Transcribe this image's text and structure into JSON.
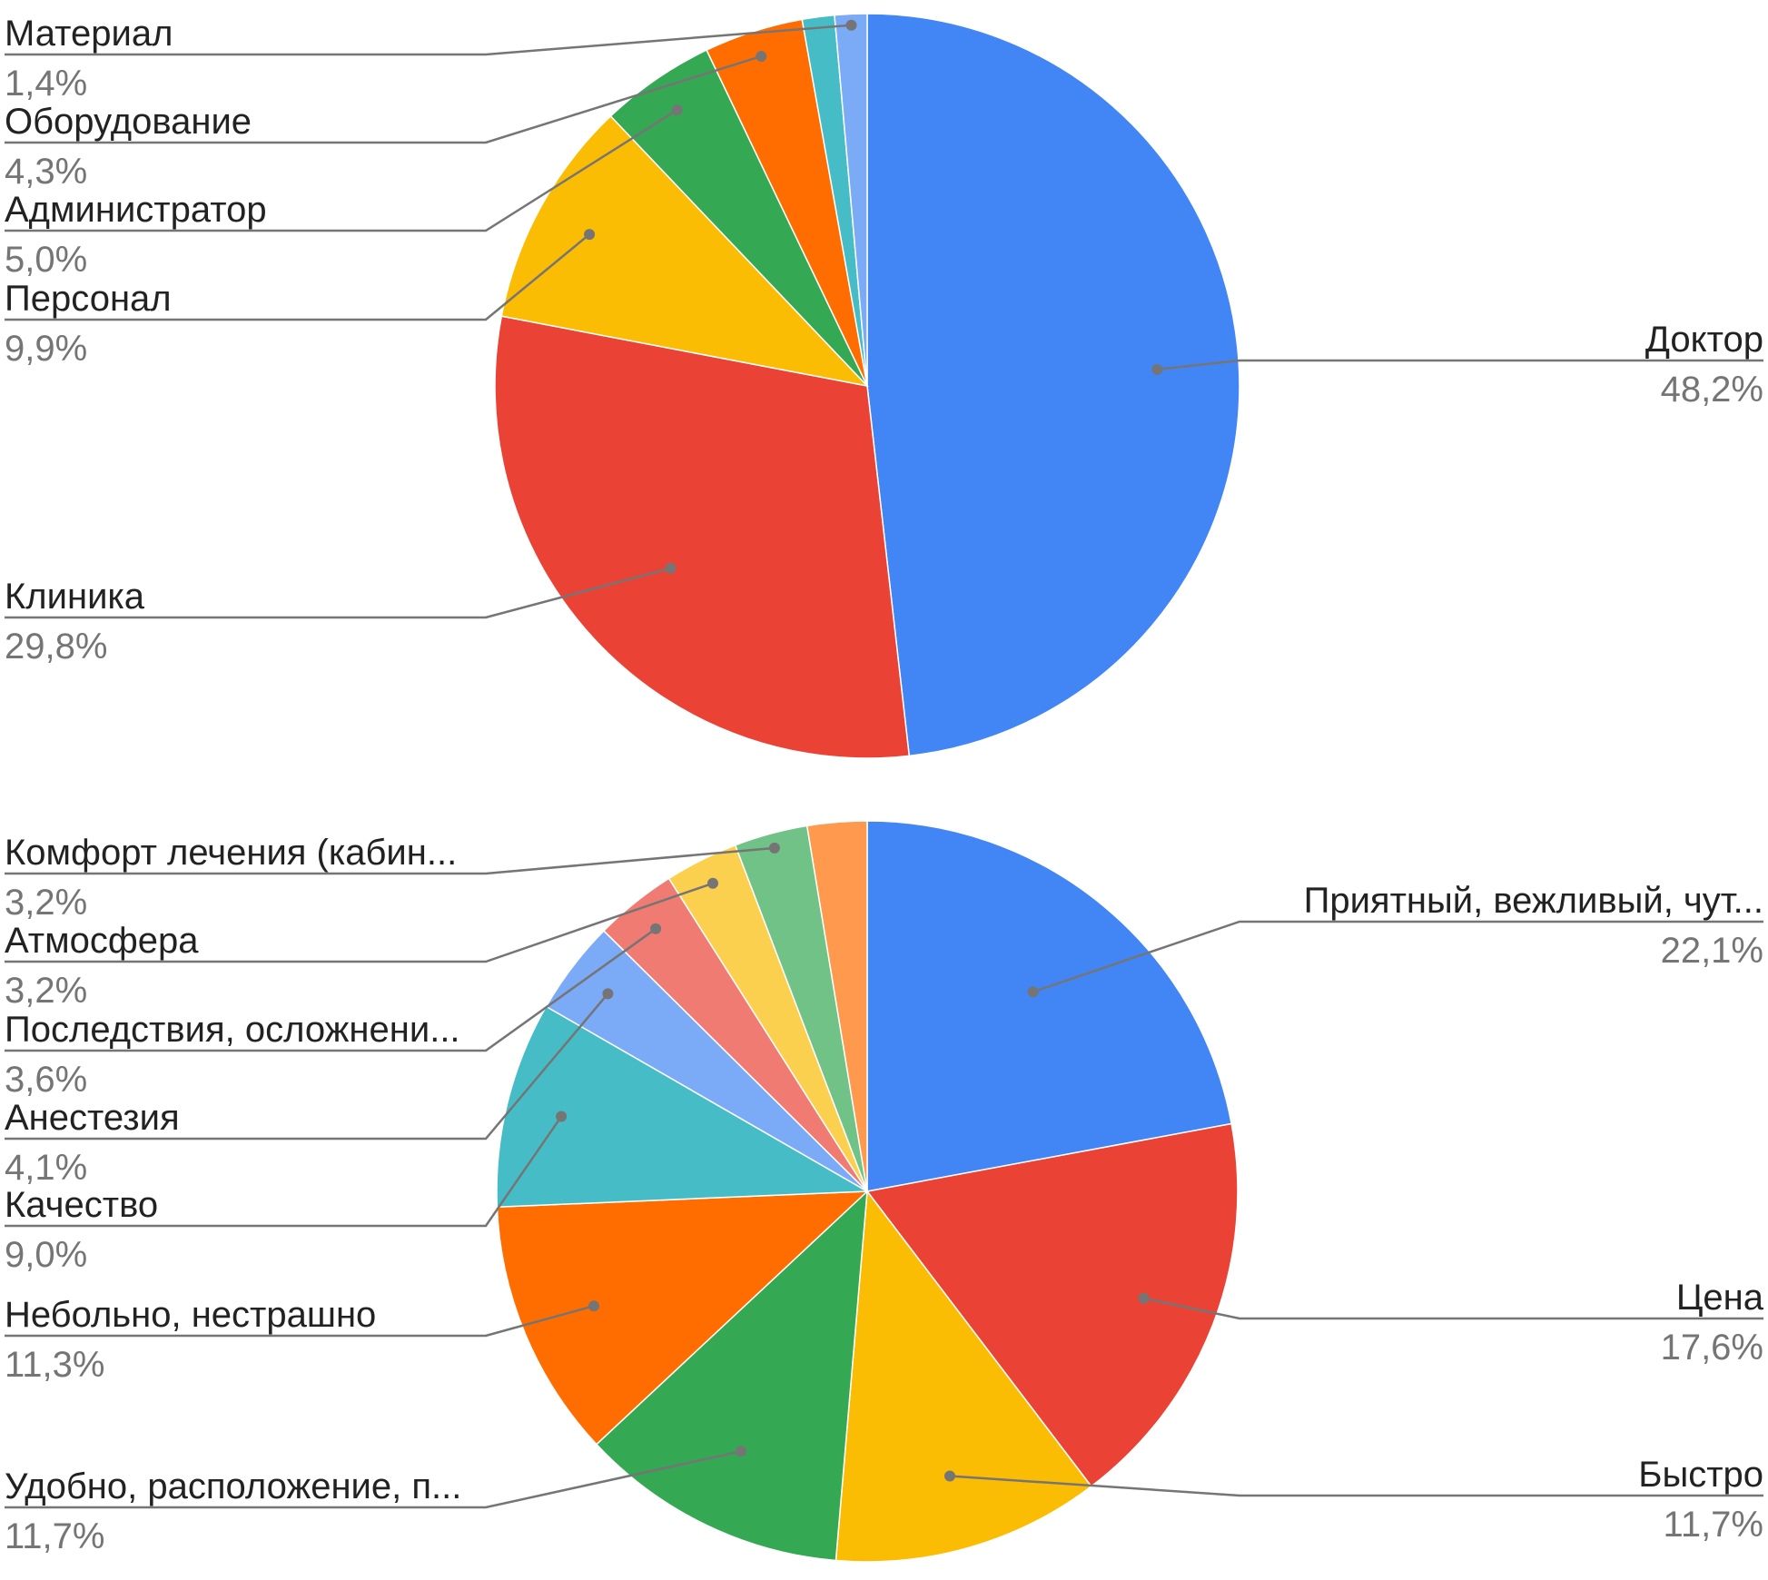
{
  "colors": {
    "blue": "#4285F4",
    "red": "#EA4335",
    "yellow": "#FBBC04",
    "green": "#34A853",
    "orange": "#FF6D01",
    "teal": "#46BDC6",
    "light_blue": "#7BAAF7",
    "salmon": "#F07B72",
    "light_yellow": "#FCD04F",
    "light_green": "#71C287",
    "light_orange": "#FF994D",
    "label": "#222222",
    "leader": "#757575"
  },
  "chart_data": [
    {
      "type": "pie",
      "slices": [
        {
          "label": "Доктор",
          "value": 48.2,
          "pct_text": "48,2%",
          "color": "#4285F4"
        },
        {
          "label": "Клиника",
          "value": 29.8,
          "pct_text": "29,8%",
          "color": "#EA4335"
        },
        {
          "label": "Персонал",
          "value": 9.9,
          "pct_text": "9,9%",
          "color": "#FBBC04"
        },
        {
          "label": "Администратор",
          "value": 5.0,
          "pct_text": "5,0%",
          "color": "#34A853"
        },
        {
          "label": "Оборудование",
          "value": 4.3,
          "pct_text": "4,3%",
          "color": "#FF6D01"
        },
        {
          "label": "",
          "value": 1.4,
          "pct_text": "",
          "color": "#46BDC6"
        },
        {
          "label": "Материал",
          "value": 1.4,
          "pct_text": "1,4%",
          "color": "#7BAAF7"
        }
      ]
    },
    {
      "type": "pie",
      "slices": [
        {
          "label": "Приятный, вежливый, чут...",
          "value": 22.1,
          "pct_text": "22,1%",
          "color": "#4285F4"
        },
        {
          "label": "Цена",
          "value": 17.6,
          "pct_text": "17,6%",
          "color": "#EA4335"
        },
        {
          "label": "Быстро",
          "value": 11.7,
          "pct_text": "11,7%",
          "color": "#FBBC04"
        },
        {
          "label": "Удобно, расположение, п...",
          "value": 11.7,
          "pct_text": "11,7%",
          "color": "#34A853"
        },
        {
          "label": "Небольно, нестрашно",
          "value": 11.3,
          "pct_text": "11,3%",
          "color": "#FF6D01"
        },
        {
          "label": "Качество",
          "value": 9.0,
          "pct_text": "9,0%",
          "color": "#46BDC6"
        },
        {
          "label": "Анестезия",
          "value": 4.1,
          "pct_text": "4,1%",
          "color": "#7BAAF7"
        },
        {
          "label": "Последствия, осложнени...",
          "value": 3.6,
          "pct_text": "3,6%",
          "color": "#F07B72"
        },
        {
          "label": "Атмосфера",
          "value": 3.2,
          "pct_text": "3,2%",
          "color": "#FCD04F"
        },
        {
          "label": "Комфорт лечения (кабин...",
          "value": 3.2,
          "pct_text": "3,2%",
          "color": "#71C287"
        },
        {
          "label": "",
          "value": 2.6,
          "pct_text": "",
          "color": "#FF994D"
        }
      ]
    }
  ]
}
